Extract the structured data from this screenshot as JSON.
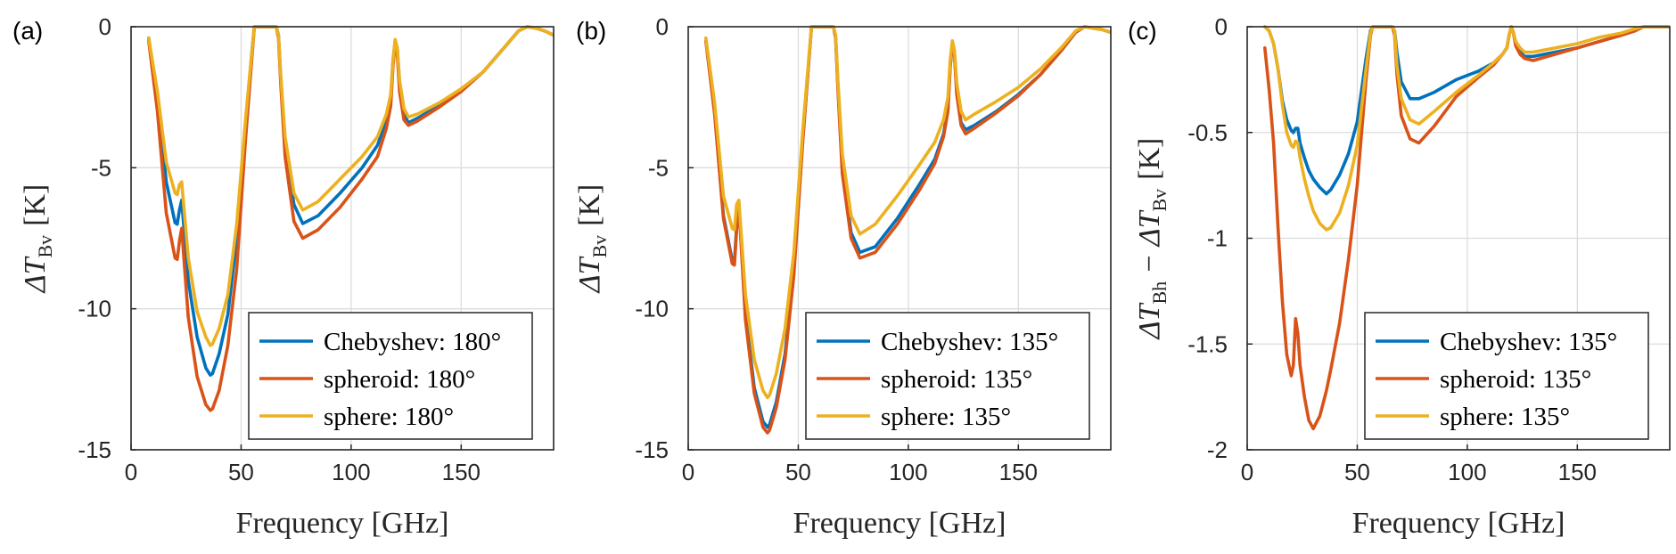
{
  "chart_data": [
    {
      "type": "line",
      "panel_label": "(a)",
      "xlabel": "Frequency [GHz]",
      "ylabel_main": "ΔT",
      "ylabel_sub": "Bv",
      "ylabel_unit": "[K]",
      "xlim": [
        0,
        192
      ],
      "ylim": [
        -15,
        0
      ],
      "xticks": [
        0,
        50,
        100,
        150
      ],
      "yticks": [
        0,
        -5,
        -10,
        -15
      ],
      "ytick_labels": [
        "0",
        "-5",
        "-10",
        "-15"
      ],
      "grid": true,
      "legend_position": "bottom-right",
      "x": [
        8,
        12,
        16,
        20,
        21,
        22,
        23,
        26,
        30,
        34,
        36,
        37,
        40,
        44,
        48,
        52,
        55,
        56,
        57,
        60,
        64,
        66,
        67,
        68,
        70,
        74,
        78,
        85,
        95,
        105,
        112,
        116,
        118,
        119,
        120,
        121,
        122,
        124,
        126,
        130,
        140,
        150,
        160,
        170,
        176,
        180,
        184,
        188,
        192
      ],
      "series": [
        {
          "name": "Chebyshev: 180°",
          "color": "#0072BD",
          "values": [
            -0.4,
            -2.5,
            -5.5,
            -6.95,
            -7.0,
            -6.5,
            -6.15,
            -9.0,
            -11.0,
            -12.1,
            -12.35,
            -12.3,
            -11.6,
            -10.2,
            -7.5,
            -3.5,
            -0.8,
            0,
            0,
            0,
            0,
            0,
            -0.3,
            -1.8,
            -4.2,
            -6.3,
            -6.98,
            -6.7,
            -5.9,
            -5.0,
            -4.2,
            -3.3,
            -2.5,
            -1.2,
            -0.5,
            -0.8,
            -2.0,
            -3.1,
            -3.4,
            -3.25,
            -2.8,
            -2.25,
            -1.6,
            -0.7,
            -0.15,
            0,
            -0.05,
            -0.15,
            -0.3
          ]
        },
        {
          "name": "spheroid: 180°",
          "color": "#D95319",
          "values": [
            -0.5,
            -3.0,
            -6.6,
            -8.2,
            -8.25,
            -7.6,
            -7.15,
            -10.3,
            -12.4,
            -13.4,
            -13.6,
            -13.55,
            -12.9,
            -11.3,
            -8.6,
            -4.0,
            -1.0,
            0,
            0,
            0,
            0,
            0,
            -0.4,
            -2.0,
            -4.6,
            -6.9,
            -7.5,
            -7.2,
            -6.4,
            -5.4,
            -4.6,
            -3.6,
            -2.8,
            -1.4,
            -0.6,
            -1.0,
            -2.3,
            -3.3,
            -3.5,
            -3.35,
            -2.85,
            -2.3,
            -1.6,
            -0.7,
            -0.15,
            0,
            -0.05,
            -0.15,
            -0.3
          ]
        },
        {
          "name": "sphere: 180°",
          "color": "#EDB120",
          "values": [
            -0.4,
            -2.3,
            -4.8,
            -5.9,
            -5.95,
            -5.6,
            -5.5,
            -8.2,
            -10.1,
            -11.0,
            -11.3,
            -11.25,
            -10.7,
            -9.5,
            -7.0,
            -3.3,
            -0.8,
            0,
            0,
            0,
            0,
            0,
            -0.3,
            -1.7,
            -3.9,
            -5.9,
            -6.5,
            -6.2,
            -5.4,
            -4.6,
            -3.9,
            -3.1,
            -2.4,
            -1.2,
            -0.45,
            -0.75,
            -1.9,
            -2.9,
            -3.2,
            -3.1,
            -2.7,
            -2.2,
            -1.6,
            -0.7,
            -0.15,
            0,
            -0.05,
            -0.15,
            -0.3
          ]
        }
      ]
    },
    {
      "type": "line",
      "panel_label": "(b)",
      "xlabel": "Frequency [GHz]",
      "ylabel_main": "ΔT",
      "ylabel_sub": "Bv",
      "ylabel_unit": "[K]",
      "xlim": [
        0,
        192
      ],
      "ylim": [
        -15,
        0
      ],
      "xticks": [
        0,
        50,
        100,
        150
      ],
      "yticks": [
        0,
        -5,
        -10,
        -15
      ],
      "ytick_labels": [
        "0",
        "-5",
        "-10",
        "-15"
      ],
      "grid": true,
      "legend_position": "bottom-right",
      "x": [
        8,
        12,
        16,
        20,
        21,
        22,
        23,
        26,
        30,
        34,
        36,
        37,
        40,
        44,
        48,
        52,
        55,
        56,
        57,
        60,
        64,
        66,
        67,
        68,
        70,
        74,
        78,
        85,
        95,
        105,
        112,
        116,
        118,
        119,
        120,
        121,
        122,
        124,
        126,
        130,
        140,
        150,
        160,
        170,
        176,
        180,
        184,
        188,
        192
      ],
      "series": [
        {
          "name": "Chebyshev: 135°",
          "color": "#0072BD",
          "values": [
            -0.5,
            -3.0,
            -6.7,
            -8.3,
            -8.35,
            -7.1,
            -6.25,
            -10.2,
            -12.8,
            -14.0,
            -14.2,
            -14.1,
            -13.3,
            -11.6,
            -8.6,
            -4.0,
            -1.0,
            0,
            0,
            0,
            0,
            0,
            -0.4,
            -2.1,
            -5.0,
            -7.3,
            -8.0,
            -7.8,
            -6.8,
            -5.6,
            -4.7,
            -3.8,
            -2.9,
            -1.4,
            -0.6,
            -1.0,
            -2.3,
            -3.4,
            -3.65,
            -3.5,
            -3.0,
            -2.4,
            -1.7,
            -0.8,
            -0.2,
            0,
            -0.05,
            -0.1,
            -0.2
          ]
        },
        {
          "name": "spheroid: 135°",
          "color": "#D95319",
          "values": [
            -0.5,
            -3.1,
            -6.8,
            -8.4,
            -8.45,
            -7.2,
            -6.3,
            -10.4,
            -13.0,
            -14.2,
            -14.4,
            -14.3,
            -13.5,
            -11.8,
            -8.8,
            -4.1,
            -1.0,
            0,
            0,
            0,
            0,
            0,
            -0.4,
            -2.2,
            -5.2,
            -7.5,
            -8.2,
            -8.0,
            -7.0,
            -5.8,
            -4.85,
            -3.9,
            -3.0,
            -1.45,
            -0.6,
            -1.0,
            -2.4,
            -3.5,
            -3.8,
            -3.6,
            -3.05,
            -2.45,
            -1.7,
            -0.8,
            -0.2,
            0,
            -0.05,
            -0.1,
            -0.2
          ]
        },
        {
          "name": "sphere: 135°",
          "color": "#EDB120",
          "values": [
            -0.4,
            -2.7,
            -6.0,
            -7.15,
            -7.2,
            -6.3,
            -6.15,
            -9.5,
            -11.8,
            -12.9,
            -13.15,
            -13.05,
            -12.3,
            -10.7,
            -8.0,
            -3.7,
            -0.9,
            0,
            0,
            0,
            0,
            0,
            -0.3,
            -1.9,
            -4.5,
            -6.7,
            -7.35,
            -7.0,
            -6.0,
            -4.9,
            -4.1,
            -3.3,
            -2.5,
            -1.2,
            -0.5,
            -0.85,
            -2.0,
            -3.0,
            -3.3,
            -3.1,
            -2.65,
            -2.15,
            -1.5,
            -0.7,
            -0.15,
            0,
            -0.05,
            -0.1,
            -0.2
          ]
        }
      ]
    },
    {
      "type": "line",
      "panel_label": "(c)",
      "xlabel": "Frequency [GHz]",
      "ylabel_main": "ΔT",
      "ylabel_sub": "Bh",
      "ylabel_minus": "− ΔT",
      "ylabel_sub2": "Bv",
      "ylabel_unit": "[K]",
      "xlim": [
        0,
        192
      ],
      "ylim": [
        -2,
        0
      ],
      "xticks": [
        0,
        50,
        100,
        150
      ],
      "yticks": [
        0,
        -0.5,
        -1,
        -1.5,
        -2
      ],
      "ytick_labels": [
        "0",
        "-0.5",
        "-1",
        "-1.5",
        "-2"
      ],
      "grid": true,
      "legend_position": "bottom-right",
      "x": [
        8,
        10,
        12,
        14,
        16,
        18,
        20,
        21,
        22,
        23,
        24,
        26,
        28,
        30,
        33,
        36,
        38,
        42,
        46,
        50,
        54,
        56,
        57,
        60,
        64,
        66,
        67,
        68,
        70,
        74,
        78,
        85,
        95,
        105,
        112,
        116,
        118,
        119,
        120,
        121,
        122,
        124,
        126,
        130,
        140,
        150,
        160,
        170,
        176,
        180,
        184,
        188,
        192
      ],
      "series": [
        {
          "name": "Chebyshev: 135°",
          "color": "#0072BD",
          "values": [
            0,
            -0.02,
            -0.08,
            -0.2,
            -0.35,
            -0.44,
            -0.49,
            -0.5,
            -0.48,
            -0.48,
            -0.55,
            -0.62,
            -0.68,
            -0.72,
            -0.76,
            -0.79,
            -0.77,
            -0.7,
            -0.6,
            -0.45,
            -0.15,
            -0.02,
            0,
            0,
            0,
            0,
            -0.02,
            -0.12,
            -0.26,
            -0.34,
            -0.34,
            -0.31,
            -0.25,
            -0.21,
            -0.17,
            -0.13,
            -0.1,
            -0.04,
            0,
            -0.03,
            -0.08,
            -0.12,
            -0.14,
            -0.14,
            -0.12,
            -0.1,
            -0.07,
            -0.04,
            -0.02,
            0,
            0,
            0,
            0
          ]
        },
        {
          "name": "spheroid: 135°",
          "color": "#D95319",
          "values": [
            -0.1,
            -0.3,
            -0.55,
            -0.95,
            -1.3,
            -1.55,
            -1.65,
            -1.6,
            -1.38,
            -1.45,
            -1.6,
            -1.75,
            -1.86,
            -1.9,
            -1.84,
            -1.72,
            -1.62,
            -1.4,
            -1.1,
            -0.75,
            -0.25,
            -0.04,
            0,
            0,
            0,
            0,
            -0.04,
            -0.22,
            -0.42,
            -0.53,
            -0.55,
            -0.47,
            -0.33,
            -0.24,
            -0.18,
            -0.13,
            -0.1,
            -0.04,
            0,
            -0.03,
            -0.09,
            -0.13,
            -0.15,
            -0.16,
            -0.13,
            -0.1,
            -0.07,
            -0.04,
            -0.02,
            0,
            0,
            0,
            0
          ]
        },
        {
          "name": "sphere: 135°",
          "color": "#EDB120",
          "values": [
            0,
            -0.02,
            -0.08,
            -0.2,
            -0.37,
            -0.5,
            -0.56,
            -0.57,
            -0.54,
            -0.55,
            -0.62,
            -0.72,
            -0.8,
            -0.87,
            -0.93,
            -0.96,
            -0.95,
            -0.88,
            -0.75,
            -0.56,
            -0.2,
            -0.03,
            0,
            0,
            0,
            0,
            -0.02,
            -0.18,
            -0.34,
            -0.44,
            -0.46,
            -0.4,
            -0.31,
            -0.23,
            -0.17,
            -0.13,
            -0.1,
            -0.04,
            0,
            -0.03,
            -0.07,
            -0.1,
            -0.12,
            -0.12,
            -0.1,
            -0.08,
            -0.05,
            -0.03,
            -0.01,
            0,
            0,
            0,
            0
          ]
        }
      ]
    }
  ]
}
